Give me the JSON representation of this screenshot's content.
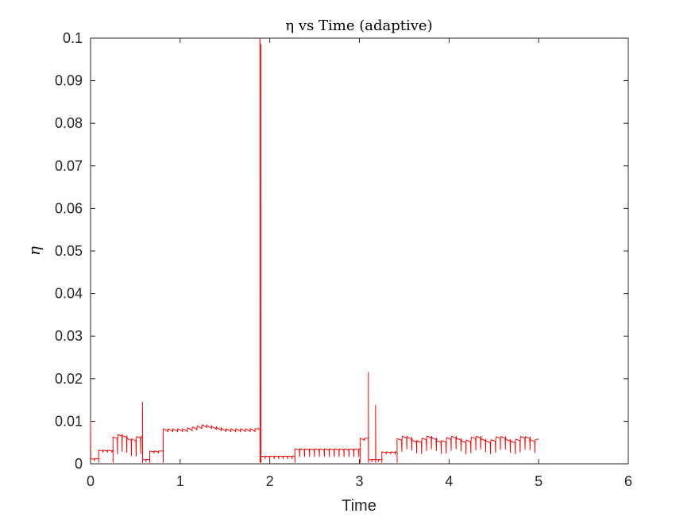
{
  "chart_data": {
    "type": "line",
    "title": "η vs Time (adaptive)",
    "xlabel": "Time",
    "ylabel": "η",
    "xlim": [
      0,
      6
    ],
    "ylim": [
      0,
      0.1
    ],
    "xticks": [
      0,
      1,
      2,
      3,
      4,
      5,
      6
    ],
    "yticks": [
      0,
      0.01,
      0.02,
      0.03,
      0.04,
      0.05,
      0.06,
      0.07,
      0.08,
      0.09,
      0.1
    ],
    "xtick_labels": [
      "0",
      "1",
      "2",
      "3",
      "4",
      "5",
      "6"
    ],
    "ytick_labels": [
      "0",
      "0.01",
      "0.02",
      "0.03",
      "0.04",
      "0.05",
      "0.06",
      "0.07",
      "0.08",
      "0.09",
      "0.1"
    ],
    "grid": false,
    "legend": "none",
    "line_color": "#ff0000",
    "series": [
      {
        "segments": [
          {
            "x0": 0.0,
            "x1": 0.09,
            "level": 0.0012,
            "dip": 0.0005,
            "period": 0.045,
            "start": 0.01
          },
          {
            "x0": 0.09,
            "x1": 0.25,
            "level": 0.0032,
            "dip": 0.0005,
            "period": 0.05
          },
          {
            "x0": 0.25,
            "x1": 0.58,
            "level": 0.0063,
            "dip": 0.004,
            "period": 0.052,
            "wobble": 0.0006
          },
          {
            "x0": 0.58,
            "x1": 0.66,
            "level": 0.001,
            "dip": 0.0005,
            "period": 0.04,
            "start": 0.0145
          },
          {
            "x0": 0.66,
            "x1": 0.81,
            "level": 0.003,
            "dip": 0.0005,
            "period": 0.05
          },
          {
            "x0": 0.81,
            "x1": 1.89,
            "level": 0.0082,
            "dip": 0.0007,
            "period": 0.054,
            "bump": [
              1.25,
              0.001
            ]
          },
          {
            "x0": 1.89,
            "x1": 1.9,
            "level": 0.0985,
            "dip": 0.0005,
            "period": 0.01,
            "start": 0.1
          },
          {
            "x0": 1.9,
            "x1": 2.28,
            "level": 0.0018,
            "dip": 0.0006,
            "period": 0.05
          },
          {
            "x0": 2.28,
            "x1": 3.01,
            "level": 0.0035,
            "dip": 0.0018,
            "period": 0.055
          },
          {
            "x0": 3.01,
            "x1": 3.1,
            "level": 0.006,
            "dip": 0.0005,
            "period": 0.045
          },
          {
            "x0": 3.1,
            "x1": 3.18,
            "level": 0.001,
            "dip": 0.0005,
            "period": 0.04,
            "start": 0.0215
          },
          {
            "x0": 3.18,
            "x1": 3.25,
            "level": 0.001,
            "dip": 0.0005,
            "period": 0.035,
            "start": 0.0138
          },
          {
            "x0": 3.25,
            "x1": 3.42,
            "level": 0.0028,
            "dip": 0.0005,
            "period": 0.05
          },
          {
            "x0": 3.42,
            "x1": 5.0,
            "level": 0.0059,
            "dip": 0.003,
            "period": 0.055,
            "wobble": 0.0006
          }
        ]
      }
    ]
  }
}
